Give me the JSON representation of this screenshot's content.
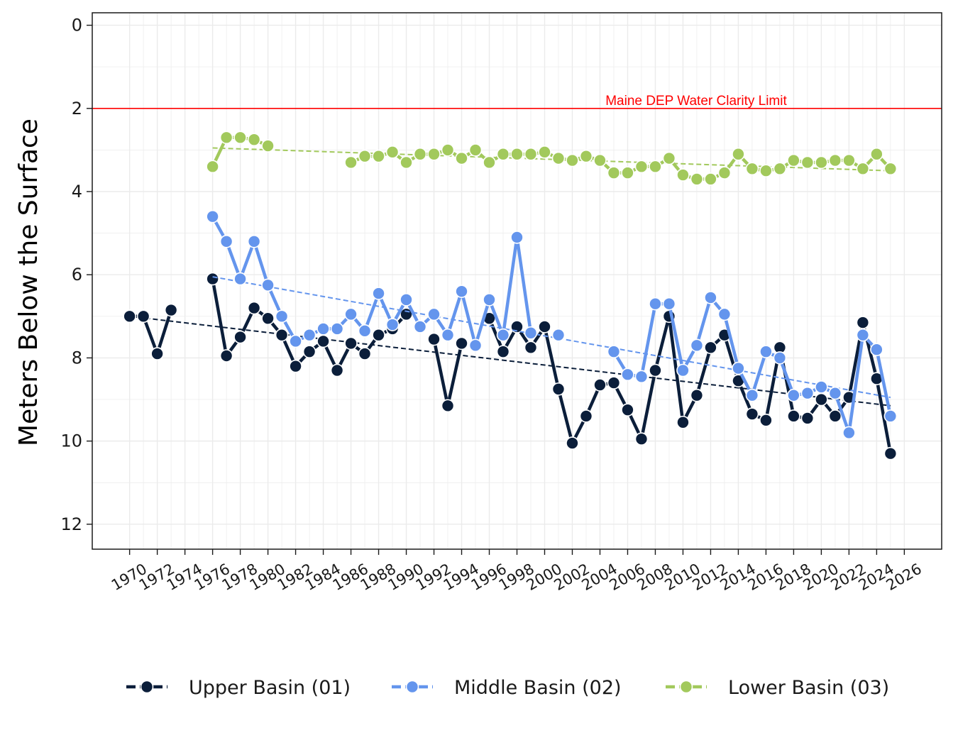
{
  "chart_data": {
    "type": "line",
    "ylabel": "Meters Below the Surface",
    "y_reversed": true,
    "ylim": [
      12.6,
      -0.3
    ],
    "xlim": [
      1967.3,
      2028.7
    ],
    "y_ticks": [
      "0",
      "2",
      "4",
      "6",
      "8",
      "10",
      "12"
    ],
    "x_ticks": [
      "1970",
      "1972",
      "1974",
      "1976",
      "1978",
      "1980",
      "1982",
      "1984",
      "1986",
      "1988",
      "1990",
      "1992",
      "1994",
      "1996",
      "1998",
      "2000",
      "2002",
      "2004",
      "2006",
      "2008",
      "2010",
      "2012",
      "2014",
      "2016",
      "2018",
      "2020",
      "2022",
      "2024",
      "2026"
    ],
    "grid": true,
    "legend_position": "bottom",
    "reference_line": {
      "y": 2,
      "label": "Maine DEP Water Clarity Limit",
      "color": "#ff0000"
    },
    "series": [
      {
        "name": "Upper Basin (01)",
        "color": "#0b1e3a",
        "trend": [
          [
            1970,
            7.0
          ],
          [
            2025,
            9.15
          ]
        ],
        "points": [
          [
            1970,
            7.0
          ],
          [
            1971,
            7.0
          ],
          [
            1972,
            7.9
          ],
          [
            1973,
            6.85
          ],
          [
            1976,
            6.1
          ],
          [
            1977,
            7.95
          ],
          [
            1978,
            7.5
          ],
          [
            1979,
            6.8
          ],
          [
            1980,
            7.05
          ],
          [
            1981,
            7.45
          ],
          [
            1982,
            8.2
          ],
          [
            1983,
            7.85
          ],
          [
            1984,
            7.6
          ],
          [
            1985,
            8.3
          ],
          [
            1986,
            7.65
          ],
          [
            1987,
            7.9
          ],
          [
            1988,
            7.45
          ],
          [
            1989,
            7.3
          ],
          [
            1990,
            6.95
          ],
          [
            1992,
            7.55
          ],
          [
            1993,
            9.15
          ],
          [
            1994,
            7.65
          ],
          [
            1996,
            7.05
          ],
          [
            1997,
            7.85
          ],
          [
            1998,
            7.25
          ],
          [
            1999,
            7.75
          ],
          [
            2000,
            7.25
          ],
          [
            2001,
            8.75
          ],
          [
            2002,
            10.05
          ],
          [
            2003,
            9.4
          ],
          [
            2004,
            8.65
          ],
          [
            2005,
            8.6
          ],
          [
            2006,
            9.25
          ],
          [
            2007,
            9.95
          ],
          [
            2008,
            8.3
          ],
          [
            2009,
            7.0
          ],
          [
            2010,
            9.55
          ],
          [
            2011,
            8.9
          ],
          [
            2012,
            7.75
          ],
          [
            2013,
            7.45
          ],
          [
            2014,
            8.55
          ],
          [
            2015,
            9.35
          ],
          [
            2016,
            9.5
          ],
          [
            2017,
            7.75
          ],
          [
            2018,
            9.4
          ],
          [
            2019,
            9.45
          ],
          [
            2020,
            9.0
          ],
          [
            2021,
            9.4
          ],
          [
            2022,
            8.95
          ],
          [
            2023,
            7.15
          ],
          [
            2024,
            8.5
          ],
          [
            2025,
            10.3
          ]
        ]
      },
      {
        "name": "Middle Basin (02)",
        "color": "#6495ed",
        "trend": [
          [
            1976,
            6.05
          ],
          [
            2025,
            8.95
          ]
        ],
        "points": [
          [
            1976,
            4.6
          ],
          [
            1977,
            5.2
          ],
          [
            1978,
            6.1
          ],
          [
            1979,
            5.2
          ],
          [
            1980,
            6.25
          ],
          [
            1981,
            7.0
          ],
          [
            1982,
            7.6
          ],
          [
            1983,
            7.45
          ],
          [
            1984,
            7.3
          ],
          [
            1985,
            7.3
          ],
          [
            1986,
            6.95
          ],
          [
            1987,
            7.35
          ],
          [
            1988,
            6.45
          ],
          [
            1989,
            7.2
          ],
          [
            1990,
            6.6
          ],
          [
            1991,
            7.25
          ],
          [
            1992,
            6.95
          ],
          [
            1993,
            7.45
          ],
          [
            1994,
            6.4
          ],
          [
            1995,
            7.7
          ],
          [
            1996,
            6.6
          ],
          [
            1997,
            7.45
          ],
          [
            1998,
            5.1
          ],
          [
            1999,
            7.4
          ],
          [
            2001,
            7.45
          ],
          [
            2005,
            7.85
          ],
          [
            2006,
            8.4
          ],
          [
            2007,
            8.45
          ],
          [
            2008,
            6.7
          ],
          [
            2009,
            6.7
          ],
          [
            2010,
            8.3
          ],
          [
            2011,
            7.7
          ],
          [
            2012,
            6.55
          ],
          [
            2013,
            6.95
          ],
          [
            2014,
            8.25
          ],
          [
            2015,
            8.9
          ],
          [
            2016,
            7.85
          ],
          [
            2017,
            8.0
          ],
          [
            2018,
            8.9
          ],
          [
            2019,
            8.85
          ],
          [
            2020,
            8.7
          ],
          [
            2021,
            8.85
          ],
          [
            2022,
            9.8
          ],
          [
            2023,
            7.45
          ],
          [
            2024,
            7.8
          ],
          [
            2025,
            9.4
          ]
        ]
      },
      {
        "name": "Lower Basin (03)",
        "color": "#a2c95c",
        "trend": [
          [
            1976,
            2.95
          ],
          [
            2025,
            3.5
          ]
        ],
        "points": [
          [
            1976,
            3.4
          ],
          [
            1977,
            2.7
          ],
          [
            1978,
            2.7
          ],
          [
            1979,
            2.75
          ],
          [
            1980,
            2.9
          ],
          [
            1986,
            3.3
          ],
          [
            1987,
            3.15
          ],
          [
            1988,
            3.15
          ],
          [
            1989,
            3.05
          ],
          [
            1990,
            3.3
          ],
          [
            1991,
            3.1
          ],
          [
            1992,
            3.1
          ],
          [
            1993,
            3.0
          ],
          [
            1994,
            3.2
          ],
          [
            1995,
            3.0
          ],
          [
            1996,
            3.3
          ],
          [
            1997,
            3.1
          ],
          [
            1998,
            3.1
          ],
          [
            1999,
            3.1
          ],
          [
            2000,
            3.05
          ],
          [
            2001,
            3.2
          ],
          [
            2002,
            3.25
          ],
          [
            2003,
            3.15
          ],
          [
            2004,
            3.25
          ],
          [
            2005,
            3.55
          ],
          [
            2006,
            3.55
          ],
          [
            2007,
            3.4
          ],
          [
            2008,
            3.4
          ],
          [
            2009,
            3.2
          ],
          [
            2010,
            3.6
          ],
          [
            2011,
            3.7
          ],
          [
            2012,
            3.7
          ],
          [
            2013,
            3.55
          ],
          [
            2014,
            3.1
          ],
          [
            2015,
            3.45
          ],
          [
            2016,
            3.5
          ],
          [
            2017,
            3.45
          ],
          [
            2018,
            3.25
          ],
          [
            2019,
            3.3
          ],
          [
            2020,
            3.3
          ],
          [
            2021,
            3.25
          ],
          [
            2022,
            3.25
          ],
          [
            2023,
            3.45
          ],
          [
            2024,
            3.1
          ],
          [
            2025,
            3.45
          ]
        ]
      }
    ]
  }
}
